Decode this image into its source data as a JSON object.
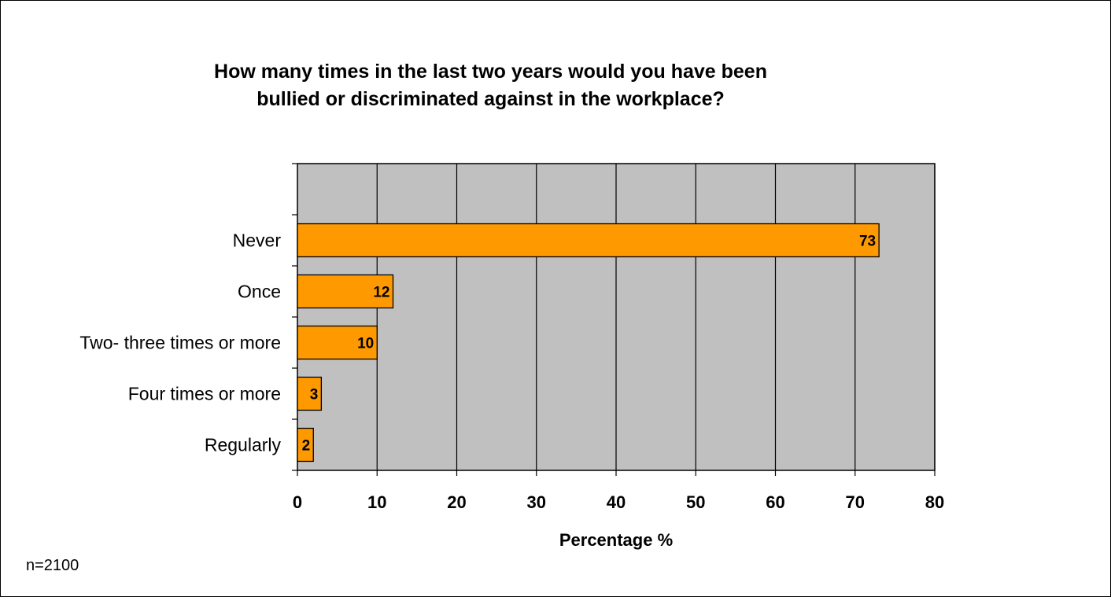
{
  "chart_data": {
    "type": "bar",
    "orientation": "horizontal",
    "title_lines": [
      "How many times in the last two years would you have been",
      "bullied or discriminated against in the workplace?"
    ],
    "categories": [
      "Never",
      "Once",
      "Two- three times or more",
      "Four times or more",
      "Regularly"
    ],
    "values": [
      73,
      12,
      10,
      3,
      2
    ],
    "data_labels": [
      "73",
      "12",
      "10",
      "3",
      "2"
    ],
    "xlabel": "Percentage %",
    "ylabel": "",
    "xlim": [
      0,
      80
    ],
    "x_ticks": [
      0,
      10,
      20,
      30,
      40,
      50,
      60,
      70,
      80
    ],
    "x_tick_labels": [
      "0",
      "10",
      "20",
      "30",
      "40",
      "50",
      "60",
      "70",
      "80"
    ],
    "grid": "vertical",
    "legend": "none",
    "colors": {
      "bar": "#FF9900",
      "plot_background": "#C0C0C0",
      "grid": "#000000"
    }
  },
  "footnote": "n=2100"
}
